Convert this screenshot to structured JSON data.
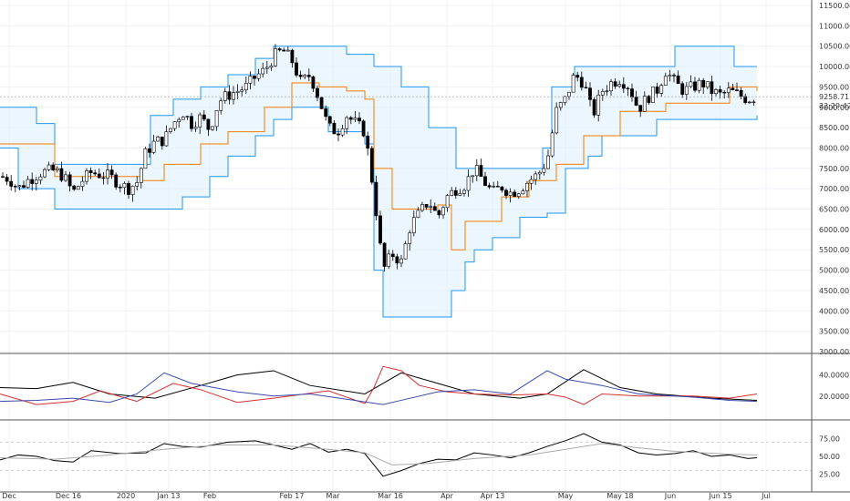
{
  "chart_data": [
    {
      "type": "candlestick",
      "x": [
        "Dec",
        "Dec 16",
        "2020",
        "Jan 13",
        "Feb",
        "Feb 17",
        "Mar",
        "Mar 16",
        "Apr",
        "Apr 13",
        "May",
        "May 18",
        "Jun",
        "Jun 15",
        "Jul"
      ],
      "ylim": [
        3000,
        11500
      ],
      "y_ticks": [
        "11500.00",
        "11000.00",
        "10500.00",
        "10000.00",
        "9500.00",
        "9000.00",
        "8500.00",
        "8000.00",
        "7500.00",
        "7000.00",
        "6500.00",
        "6000.00",
        "5500.00",
        "5000.00",
        "4500.00",
        "4000.00",
        "3500.00",
        "3000.00"
      ],
      "last_price": "9258.71",
      "countdown": "22:29:42",
      "close_path": [
        [
          0,
          7300
        ],
        [
          10,
          7250
        ],
        [
          20,
          7000
        ],
        [
          30,
          7200
        ],
        [
          45,
          7400
        ],
        [
          60,
          7450
        ],
        [
          70,
          7300
        ],
        [
          80,
          6900
        ],
        [
          90,
          7200
        ],
        [
          100,
          7400
        ],
        [
          110,
          7350
        ],
        [
          120,
          7300
        ],
        [
          130,
          7150
        ],
        [
          140,
          7000
        ],
        [
          150,
          7150
        ],
        [
          160,
          7900
        ],
        [
          170,
          8150
        ],
        [
          180,
          8200
        ],
        [
          190,
          8600
        ],
        [
          200,
          8900
        ],
        [
          210,
          8600
        ],
        [
          220,
          8750
        ],
        [
          230,
          8450
        ],
        [
          240,
          9150
        ],
        [
          250,
          9300
        ],
        [
          260,
          9400
        ],
        [
          270,
          9500
        ],
        [
          280,
          9750
        ],
        [
          290,
          9900
        ],
        [
          300,
          10250
        ],
        [
          310,
          10400
        ],
        [
          320,
          10150
        ],
        [
          330,
          9600
        ],
        [
          340,
          9800
        ],
        [
          350,
          9200
        ],
        [
          360,
          8500
        ],
        [
          370,
          8400
        ],
        [
          380,
          8800
        ],
        [
          390,
          8600
        ],
        [
          400,
          8400
        ],
        [
          410,
          6900
        ],
        [
          420,
          5000
        ],
        [
          430,
          5400
        ],
        [
          440,
          5200
        ],
        [
          450,
          6100
        ],
        [
          460,
          6400
        ],
        [
          470,
          6700
        ],
        [
          480,
          6300
        ],
        [
          490,
          6800
        ],
        [
          500,
          7000
        ],
        [
          510,
          7100
        ],
        [
          520,
          7500
        ],
        [
          530,
          7200
        ],
        [
          540,
          6900
        ],
        [
          550,
          7050
        ],
        [
          560,
          6900
        ],
        [
          570,
          7000
        ],
        [
          580,
          7200
        ],
        [
          590,
          7350
        ],
        [
          600,
          7700
        ],
        [
          610,
          8900
        ],
        [
          620,
          9200
        ],
        [
          630,
          9800
        ],
        [
          640,
          9600
        ],
        [
          650,
          8800
        ],
        [
          660,
          9400
        ],
        [
          670,
          9600
        ],
        [
          680,
          9700
        ],
        [
          690,
          9500
        ],
        [
          700,
          8950
        ],
        [
          710,
          9250
        ],
        [
          720,
          9400
        ],
        [
          730,
          9900
        ],
        [
          740,
          9600
        ],
        [
          750,
          9400
        ],
        [
          760,
          9500
        ],
        [
          770,
          9600
        ],
        [
          780,
          9400
        ],
        [
          790,
          9300
        ],
        [
          800,
          9400
        ],
        [
          810,
          9300
        ],
        [
          820,
          9200
        ],
        [
          830,
          9259
        ]
      ],
      "donchian_upper": [
        [
          0,
          9000
        ],
        [
          40,
          8600
        ],
        [
          60,
          7600
        ],
        [
          150,
          7600
        ],
        [
          165,
          8800
        ],
        [
          190,
          9200
        ],
        [
          220,
          9500
        ],
        [
          250,
          9800
        ],
        [
          280,
          10200
        ],
        [
          300,
          10500
        ],
        [
          340,
          10500
        ],
        [
          380,
          10300
        ],
        [
          410,
          10000
        ],
        [
          440,
          9500
        ],
        [
          470,
          8500
        ],
        [
          500,
          7500
        ],
        [
          570,
          7500
        ],
        [
          595,
          8000
        ],
        [
          605,
          9500
        ],
        [
          630,
          10000
        ],
        [
          730,
          10000
        ],
        [
          740,
          10500
        ],
        [
          800,
          10500
        ],
        [
          805,
          10000
        ],
        [
          830,
          10000
        ]
      ],
      "donchian_lower": [
        [
          0,
          8000
        ],
        [
          20,
          7000
        ],
        [
          60,
          6500
        ],
        [
          155,
          6500
        ],
        [
          160,
          6500
        ],
        [
          200,
          6800
        ],
        [
          230,
          7300
        ],
        [
          250,
          7800
        ],
        [
          280,
          8300
        ],
        [
          300,
          8700
        ],
        [
          320,
          9000
        ],
        [
          340,
          9000
        ],
        [
          360,
          8400
        ],
        [
          400,
          8100
        ],
        [
          410,
          5000
        ],
        [
          420,
          3850
        ],
        [
          490,
          3850
        ],
        [
          495,
          4500
        ],
        [
          510,
          5200
        ],
        [
          520,
          5500
        ],
        [
          540,
          5800
        ],
        [
          570,
          6300
        ],
        [
          600,
          6400
        ],
        [
          620,
          7500
        ],
        [
          645,
          7800
        ],
        [
          660,
          8300
        ],
        [
          700,
          8300
        ],
        [
          720,
          8700
        ],
        [
          790,
          8700
        ],
        [
          830,
          8800
        ]
      ],
      "donchian_mid": [
        [
          0,
          8100
        ],
        [
          60,
          7300
        ],
        [
          155,
          7200
        ],
        [
          180,
          7600
        ],
        [
          220,
          8100
        ],
        [
          250,
          8400
        ],
        [
          290,
          9000
        ],
        [
          320,
          9600
        ],
        [
          350,
          9500
        ],
        [
          380,
          9400
        ],
        [
          400,
          9200
        ],
        [
          410,
          7500
        ],
        [
          430,
          6500
        ],
        [
          480,
          6600
        ],
        [
          495,
          5500
        ],
        [
          510,
          6200
        ],
        [
          550,
          6800
        ],
        [
          580,
          7200
        ],
        [
          610,
          7600
        ],
        [
          640,
          8300
        ],
        [
          680,
          8900
        ],
        [
          730,
          9100
        ],
        [
          800,
          9500
        ],
        [
          830,
          9400
        ]
      ],
      "sub_indicator_1": {
        "y_ticks": [
          "40.0000",
          "20.0000"
        ],
        "series": [
          {
            "color": "#000000",
            "values": [
              [
                0,
                28
              ],
              [
                40,
                27
              ],
              [
                80,
                33
              ],
              [
                120,
                22
              ],
              [
                170,
                18
              ],
              [
                220,
                30
              ],
              [
                260,
                40
              ],
              [
                300,
                44
              ],
              [
                340,
                30
              ],
              [
                400,
                22
              ],
              [
                440,
                42
              ],
              [
                480,
                32
              ],
              [
                520,
                22
              ],
              [
                570,
                18
              ],
              [
                600,
                22
              ],
              [
                640,
                45
              ],
              [
                680,
                28
              ],
              [
                720,
                22
              ],
              [
                780,
                18
              ],
              [
                830,
                16
              ]
            ]
          },
          {
            "color": "#d32f2f",
            "values": [
              [
                0,
                22
              ],
              [
                40,
                12
              ],
              [
                80,
                15
              ],
              [
                110,
                25
              ],
              [
                150,
                15
              ],
              [
                190,
                32
              ],
              [
                220,
                26
              ],
              [
                260,
                14
              ],
              [
                300,
                18
              ],
              [
                360,
                25
              ],
              [
                400,
                13
              ],
              [
                410,
                28
              ],
              [
                420,
                48
              ],
              [
                440,
                44
              ],
              [
                460,
                30
              ],
              [
                490,
                24
              ],
              [
                520,
                22
              ],
              [
                560,
                21
              ],
              [
                600,
                22
              ],
              [
                620,
                19
              ],
              [
                640,
                12
              ],
              [
                660,
                22
              ],
              [
                700,
                20
              ],
              [
                760,
                20
              ],
              [
                800,
                18
              ],
              [
                830,
                22
              ]
            ]
          },
          {
            "color": "#3949ab",
            "values": [
              [
                0,
                15
              ],
              [
                40,
                16
              ],
              [
                80,
                18
              ],
              [
                120,
                14
              ],
              [
                150,
                22
              ],
              [
                180,
                42
              ],
              [
                210,
                32
              ],
              [
                260,
                24
              ],
              [
                300,
                20
              ],
              [
                340,
                22
              ],
              [
                380,
                17
              ],
              [
                420,
                12
              ],
              [
                440,
                16
              ],
              [
                480,
                24
              ],
              [
                520,
                26
              ],
              [
                560,
                22
              ],
              [
                600,
                44
              ],
              [
                620,
                36
              ],
              [
                660,
                30
              ],
              [
                700,
                22
              ],
              [
                760,
                19
              ],
              [
                800,
                16
              ],
              [
                830,
                15
              ]
            ]
          }
        ]
      },
      "sub_indicator_2": {
        "y_ticks": [
          "75.00",
          "50.00",
          "25.00"
        ],
        "series": [
          {
            "color": "#000000",
            "values": [
              [
                0,
                45
              ],
              [
                20,
                52
              ],
              [
                40,
                50
              ],
              [
                60,
                44
              ],
              [
                80,
                42
              ],
              [
                100,
                58
              ],
              [
                130,
                54
              ],
              [
                160,
                55
              ],
              [
                180,
                68
              ],
              [
                200,
                64
              ],
              [
                220,
                63
              ],
              [
                250,
                70
              ],
              [
                280,
                72
              ],
              [
                300,
                66
              ],
              [
                320,
                60
              ],
              [
                340,
                68
              ],
              [
                360,
                56
              ],
              [
                380,
                60
              ],
              [
                400,
                54
              ],
              [
                410,
                38
              ],
              [
                420,
                22
              ],
              [
                440,
                30
              ],
              [
                460,
                40
              ],
              [
                480,
                46
              ],
              [
                500,
                45
              ],
              [
                520,
                55
              ],
              [
                540,
                52
              ],
              [
                560,
                48
              ],
              [
                580,
                55
              ],
              [
                600,
                64
              ],
              [
                620,
                72
              ],
              [
                640,
                82
              ],
              [
                660,
                70
              ],
              [
                680,
                66
              ],
              [
                700,
                55
              ],
              [
                720,
                52
              ],
              [
                740,
                54
              ],
              [
                760,
                58
              ],
              [
                780,
                50
              ],
              [
                800,
                52
              ],
              [
                820,
                47
              ],
              [
                830,
                48
              ]
            ]
          },
          {
            "color": "#aaaaaa",
            "values": [
              [
                0,
                48
              ],
              [
                60,
                46
              ],
              [
                120,
                52
              ],
              [
                180,
                60
              ],
              [
                240,
                66
              ],
              [
                300,
                66
              ],
              [
                360,
                60
              ],
              [
                400,
                55
              ],
              [
                430,
                38
              ],
              [
                470,
                40
              ],
              [
                520,
                47
              ],
              [
                580,
                52
              ],
              [
                620,
                60
              ],
              [
                660,
                68
              ],
              [
                700,
                62
              ],
              [
                740,
                57
              ],
              [
                800,
                53
              ],
              [
                830,
                52
              ]
            ]
          }
        ]
      }
    }
  ]
}
